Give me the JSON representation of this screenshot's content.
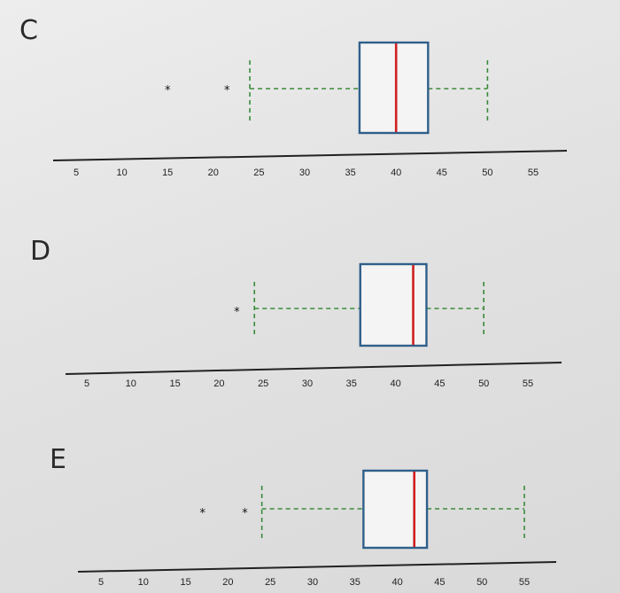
{
  "chart_data": [
    {
      "type": "boxplot",
      "panel_label": "C",
      "x_ticks": [
        5,
        10,
        15,
        20,
        25,
        30,
        35,
        40,
        45,
        50,
        55
      ],
      "xlim": [
        5,
        55
      ],
      "box": {
        "whisker_low": 24,
        "q1": 36,
        "median": 40,
        "q3": 43.5,
        "whisker_high": 50
      },
      "outliers": [
        15,
        21.5
      ],
      "grid": false
    },
    {
      "type": "boxplot",
      "panel_label": "D",
      "x_ticks": [
        5,
        10,
        15,
        20,
        25,
        30,
        35,
        40,
        45,
        50,
        55
      ],
      "xlim": [
        5,
        55
      ],
      "box": {
        "whisker_low": 24,
        "q1": 36,
        "median": 42,
        "q3": 43.5,
        "whisker_high": 50
      },
      "outliers": [
        22
      ],
      "grid": false
    },
    {
      "type": "boxplot",
      "panel_label": "E",
      "x_ticks": [
        5,
        10,
        15,
        20,
        25,
        30,
        35,
        40,
        45,
        50,
        55
      ],
      "xlim": [
        5,
        55
      ],
      "box": {
        "whisker_low": 24,
        "q1": 36,
        "median": 42,
        "q3": 43.5,
        "whisker_high": 55
      },
      "outliers": [
        17,
        22
      ],
      "grid": false
    }
  ],
  "colors": {
    "box_edge": "#2f5f8a",
    "median": "#d02020",
    "whisker": "#3a8a3a",
    "axis": "#222222"
  }
}
